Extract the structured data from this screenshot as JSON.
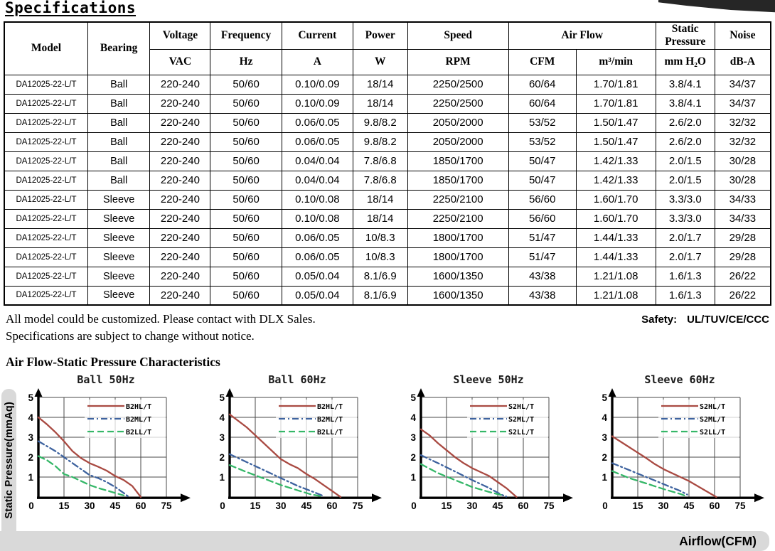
{
  "title": "Specifications",
  "table": {
    "headers": {
      "model": "Model",
      "bearing": "Bearing",
      "voltage": "Voltage",
      "frequency": "Frequency",
      "current": "Current",
      "power": "Power",
      "speed": "Speed",
      "air_flow": "Air Flow",
      "static_pressure": "Static Pressure",
      "noise": "Noise"
    },
    "units": {
      "voltage": "VAC",
      "frequency": "Hz",
      "current": "A",
      "power": "W",
      "speed": "RPM",
      "air_flow_cfm": "CFM",
      "air_flow_m3": "m³/min",
      "static_pressure": "mm H₂O",
      "noise": "dB-A"
    },
    "rows": [
      [
        "DA12025-22-L/T",
        "Ball",
        "220-240",
        "50/60",
        "0.10/0.09",
        "18/14",
        "2250/2500",
        "60/64",
        "1.70/1.81",
        "3.8/4.1",
        "34/37"
      ],
      [
        "DA12025-22-L/T",
        "Ball",
        "220-240",
        "50/60",
        "0.10/0.09",
        "18/14",
        "2250/2500",
        "60/64",
        "1.70/1.81",
        "3.8/4.1",
        "34/37"
      ],
      [
        "DA12025-22-L/T",
        "Ball",
        "220-240",
        "50/60",
        "0.06/0.05",
        "9.8/8.2",
        "2050/2000",
        "53/52",
        "1.50/1.47",
        "2.6/2.0",
        "32/32"
      ],
      [
        "DA12025-22-L/T",
        "Ball",
        "220-240",
        "50/60",
        "0.06/0.05",
        "9.8/8.2",
        "2050/2000",
        "53/52",
        "1.50/1.47",
        "2.6/2.0",
        "32/32"
      ],
      [
        "DA12025-22-L/T",
        "Ball",
        "220-240",
        "50/60",
        "0.04/0.04",
        "7.8/6.8",
        "1850/1700",
        "50/47",
        "1.42/1.33",
        "2.0/1.5",
        "30/28"
      ],
      [
        "DA12025-22-L/T",
        "Ball",
        "220-240",
        "50/60",
        "0.04/0.04",
        "7.8/6.8",
        "1850/1700",
        "50/47",
        "1.42/1.33",
        "2.0/1.5",
        "30/28"
      ],
      [
        "DA12025-22-L/T",
        "Sleeve",
        "220-240",
        "50/60",
        "0.10/0.08",
        "18/14",
        "2250/2100",
        "56/60",
        "1.60/1.70",
        "3.3/3.0",
        "34/33"
      ],
      [
        "DA12025-22-L/T",
        "Sleeve",
        "220-240",
        "50/60",
        "0.10/0.08",
        "18/14",
        "2250/2100",
        "56/60",
        "1.60/1.70",
        "3.3/3.0",
        "34/33"
      ],
      [
        "DA12025-22-L/T",
        "Sleeve",
        "220-240",
        "50/60",
        "0.06/0.05",
        "10/8.3",
        "1800/1700",
        "51/47",
        "1.44/1.33",
        "2.0/1.7",
        "29/28"
      ],
      [
        "DA12025-22-L/T",
        "Sleeve",
        "220-240",
        "50/60",
        "0.06/0.05",
        "10/8.3",
        "1800/1700",
        "51/47",
        "1.44/1.33",
        "2.0/1.7",
        "29/28"
      ],
      [
        "DA12025-22-L/T",
        "Sleeve",
        "220-240",
        "50/60",
        "0.05/0.04",
        "8.1/6.9",
        "1600/1350",
        "43/38",
        "1.21/1.08",
        "1.6/1.3",
        "26/22"
      ],
      [
        "DA12025-22-L/T",
        "Sleeve",
        "220-240",
        "50/60",
        "0.05/0.04",
        "8.1/6.9",
        "1600/1350",
        "43/38",
        "1.21/1.08",
        "1.6/1.3",
        "26/22"
      ]
    ]
  },
  "notes": {
    "line1": "All model could be customized. Please contact with DLX Sales.",
    "safety_label": "Safety:",
    "safety_value": "UL/TUV/CE/CCC",
    "line2": "Specifications are subject to change without notice."
  },
  "charts_section": {
    "heading": "Air Flow-Static Pressure Characteristics",
    "y_axis_label": "Static Pressure(mmAq)",
    "x_axis_label": "Airflow(CFM)"
  },
  "colors": {
    "red": "#a94a42",
    "blue": "#3e639f",
    "green": "#35b768",
    "grid": "#4a4a4a",
    "bar_gray": "#d9d9d9",
    "photo_dark": "#262626"
  },
  "chart_data": [
    {
      "type": "line",
      "title": "Ball 50Hz",
      "xlabel": "Airflow(CFM)",
      "ylabel": "Static Pressure(mmAq)",
      "xlim": [
        0,
        75
      ],
      "ylim": [
        0,
        5
      ],
      "xticks": [
        0,
        15,
        30,
        45,
        60,
        75
      ],
      "yticks": [
        0,
        1,
        2,
        3,
        4,
        5
      ],
      "grid": true,
      "legend_position": "top-right",
      "series": [
        {
          "name": "B2HL/T",
          "color_key": "red",
          "style": "solid",
          "points": [
            [
              0,
              4.0
            ],
            [
              5,
              3.65
            ],
            [
              10,
              3.25
            ],
            [
              15,
              2.8
            ],
            [
              20,
              2.3
            ],
            [
              25,
              1.95
            ],
            [
              30,
              1.7
            ],
            [
              35,
              1.52
            ],
            [
              40,
              1.32
            ],
            [
              45,
              1.05
            ],
            [
              50,
              0.85
            ],
            [
              55,
              0.55
            ],
            [
              60,
              0
            ]
          ]
        },
        {
          "name": "B2ML/T",
          "color_key": "blue",
          "style": "dashdot",
          "points": [
            [
              0,
              2.8
            ],
            [
              5,
              2.55
            ],
            [
              10,
              2.3
            ],
            [
              15,
              2.0
            ],
            [
              20,
              1.7
            ],
            [
              25,
              1.4
            ],
            [
              30,
              1.1
            ],
            [
              35,
              0.95
            ],
            [
              40,
              0.75
            ],
            [
              45,
              0.5
            ],
            [
              50,
              0.2
            ],
            [
              53,
              0
            ]
          ]
        },
        {
          "name": "B2LL/T",
          "color_key": "green",
          "style": "dashed",
          "points": [
            [
              0,
              2.05
            ],
            [
              5,
              1.85
            ],
            [
              10,
              1.55
            ],
            [
              15,
              1.15
            ],
            [
              20,
              1.0
            ],
            [
              25,
              0.8
            ],
            [
              30,
              0.6
            ],
            [
              35,
              0.45
            ],
            [
              40,
              0.33
            ],
            [
              45,
              0.2
            ],
            [
              50,
              0.08
            ]
          ]
        }
      ]
    },
    {
      "type": "line",
      "title": "Ball 60Hz",
      "xlabel": "Airflow(CFM)",
      "ylabel": "Static Pressure(mmAq)",
      "xlim": [
        0,
        75
      ],
      "ylim": [
        0,
        5
      ],
      "xticks": [
        0,
        15,
        30,
        45,
        60,
        75
      ],
      "yticks": [
        0,
        1,
        2,
        3,
        4,
        5
      ],
      "grid": true,
      "legend_position": "top-right",
      "series": [
        {
          "name": "B2HL/T",
          "color_key": "red",
          "style": "solid",
          "points": [
            [
              0,
              4.15
            ],
            [
              10,
              3.5
            ],
            [
              15,
              3.1
            ],
            [
              20,
              2.7
            ],
            [
              25,
              2.3
            ],
            [
              30,
              1.9
            ],
            [
              35,
              1.65
            ],
            [
              40,
              1.45
            ],
            [
              45,
              1.15
            ],
            [
              50,
              0.9
            ],
            [
              55,
              0.6
            ],
            [
              60,
              0.3
            ],
            [
              65,
              0
            ]
          ]
        },
        {
          "name": "B2ML/T",
          "color_key": "blue",
          "style": "dashdot",
          "points": [
            [
              0,
              2.15
            ],
            [
              10,
              1.75
            ],
            [
              20,
              1.35
            ],
            [
              30,
              0.95
            ],
            [
              40,
              0.55
            ],
            [
              50,
              0.22
            ],
            [
              55,
              0.05
            ]
          ]
        },
        {
          "name": "B2LL/T",
          "color_key": "green",
          "style": "dashed",
          "points": [
            [
              0,
              1.6
            ],
            [
              10,
              1.25
            ],
            [
              20,
              0.93
            ],
            [
              30,
              0.6
            ],
            [
              40,
              0.33
            ],
            [
              48,
              0.12
            ],
            [
              53,
              0.05
            ]
          ]
        }
      ]
    },
    {
      "type": "line",
      "title": "Sleeve 50Hz",
      "xlabel": "Airflow(CFM)",
      "ylabel": "Static Pressure(mmAq)",
      "xlim": [
        0,
        75
      ],
      "ylim": [
        0,
        5
      ],
      "xticks": [
        0,
        15,
        30,
        45,
        60,
        75
      ],
      "yticks": [
        0,
        1,
        2,
        3,
        4,
        5
      ],
      "grid": true,
      "legend_position": "top-right",
      "series": [
        {
          "name": "S2HL/T",
          "color_key": "red",
          "style": "solid",
          "points": [
            [
              0,
              3.4
            ],
            [
              5,
              3.1
            ],
            [
              10,
              2.7
            ],
            [
              15,
              2.35
            ],
            [
              20,
              2.0
            ],
            [
              25,
              1.7
            ],
            [
              30,
              1.45
            ],
            [
              35,
              1.25
            ],
            [
              40,
              1.05
            ],
            [
              45,
              0.75
            ],
            [
              50,
              0.45
            ],
            [
              56,
              0
            ]
          ]
        },
        {
          "name": "S2ML/T",
          "color_key": "blue",
          "style": "dashdot",
          "points": [
            [
              0,
              2.1
            ],
            [
              10,
              1.7
            ],
            [
              20,
              1.28
            ],
            [
              30,
              0.85
            ],
            [
              40,
              0.45
            ],
            [
              47,
              0.12
            ],
            [
              50,
              0.02
            ]
          ]
        },
        {
          "name": "S2LL/T",
          "color_key": "green",
          "style": "dashed",
          "points": [
            [
              0,
              1.65
            ],
            [
              10,
              1.2
            ],
            [
              20,
              0.85
            ],
            [
              30,
              0.5
            ],
            [
              40,
              0.25
            ],
            [
              47,
              0.1
            ]
          ]
        }
      ]
    },
    {
      "type": "line",
      "title": "Sleeve 60Hz",
      "xlabel": "Airflow(CFM)",
      "ylabel": "Static Pressure(mmAq)",
      "xlim": [
        0,
        75
      ],
      "ylim": [
        0,
        5
      ],
      "xticks": [
        0,
        15,
        30,
        45,
        60,
        75
      ],
      "yticks": [
        0,
        1,
        2,
        3,
        4,
        5
      ],
      "grid": true,
      "legend_position": "top-right",
      "series": [
        {
          "name": "S2HL/T",
          "color_key": "red",
          "style": "solid",
          "points": [
            [
              0,
              3.05
            ],
            [
              10,
              2.5
            ],
            [
              20,
              1.95
            ],
            [
              25,
              1.65
            ],
            [
              30,
              1.4
            ],
            [
              35,
              1.2
            ],
            [
              40,
              1.0
            ],
            [
              45,
              0.8
            ],
            [
              50,
              0.55
            ],
            [
              55,
              0.3
            ],
            [
              61,
              0
            ]
          ]
        },
        {
          "name": "S2ML/T",
          "color_key": "blue",
          "style": "dashdot",
          "points": [
            [
              0,
              1.7
            ],
            [
              10,
              1.35
            ],
            [
              20,
              1.0
            ],
            [
              30,
              0.65
            ],
            [
              40,
              0.3
            ],
            [
              44,
              0.12
            ]
          ]
        },
        {
          "name": "S2LL/T",
          "color_key": "green",
          "style": "dashed",
          "points": [
            [
              0,
              1.3
            ],
            [
              10,
              0.95
            ],
            [
              20,
              0.68
            ],
            [
              30,
              0.4
            ],
            [
              40,
              0.15
            ],
            [
              43,
              0.05
            ]
          ]
        }
      ]
    }
  ]
}
